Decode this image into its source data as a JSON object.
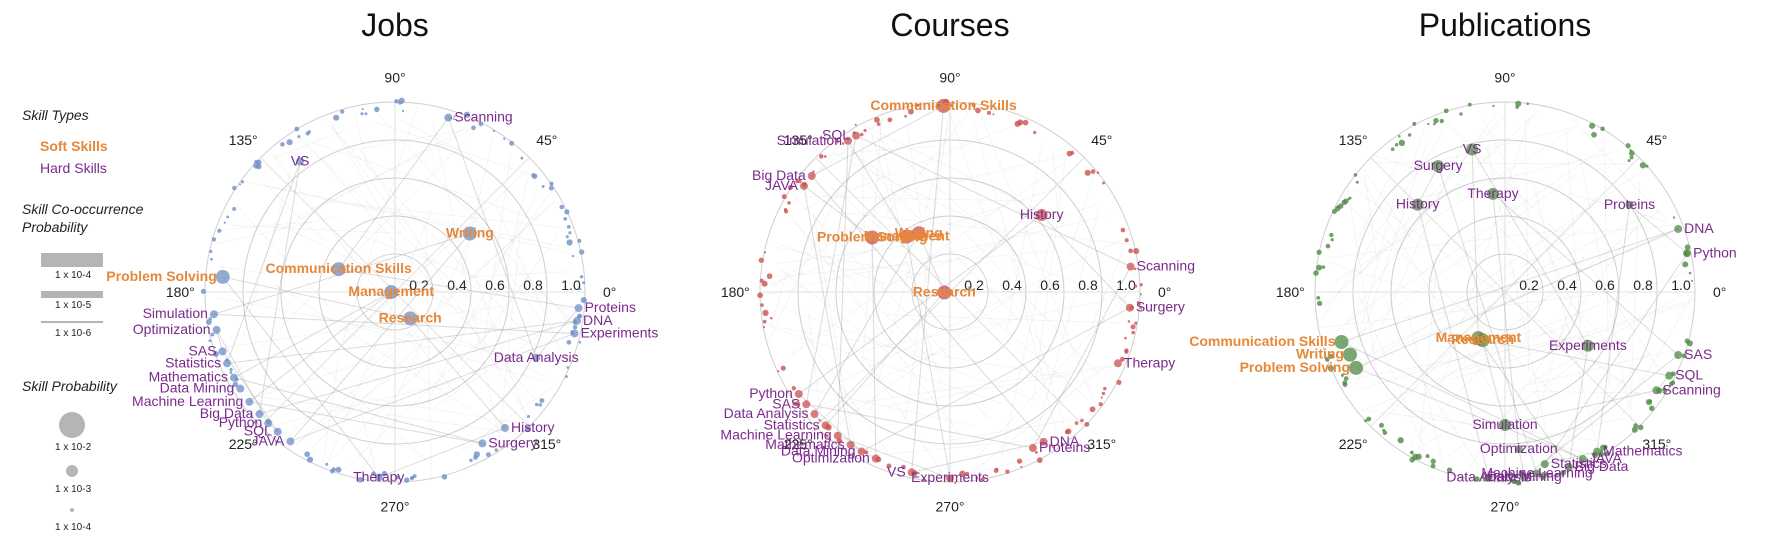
{
  "legend": {
    "skill_types_title": "Skill Types",
    "soft_label": "Soft Skills",
    "hard_label": "Hard Skills",
    "cooccurrence_title_line1": "Skill Co-occurrence",
    "cooccurrence_title_line2": "Probability",
    "cooccurrence_levels": [
      "1 x 10-4",
      "1 x 10-5",
      "1 x 10-6"
    ],
    "probability_title": "Skill Probability",
    "probability_levels": [
      "1 x 10-2",
      "1 x 10-3",
      "1 x 10-4"
    ],
    "soft_color": "#e6883a",
    "hard_color": "#7b2a8c"
  },
  "chart_data": [
    {
      "type": "scatter",
      "title": "Jobs",
      "color": "#6f8fc6",
      "angle_labels": [
        "0°",
        "45°",
        "90°",
        "135°",
        "180°",
        "225°",
        "270°",
        "315°"
      ],
      "radial_ticks": [
        "0.2",
        "0.4",
        "0.6",
        "0.8",
        "1.0"
      ],
      "skills": [
        {
          "name": "Scanning",
          "type": "hard",
          "r": 0.96,
          "theta": 73
        },
        {
          "name": "VS",
          "type": "hard",
          "r": 0.85,
          "theta": 126
        },
        {
          "name": "Writing",
          "type": "soft",
          "r": 0.5,
          "theta": 38
        },
        {
          "name": "Communication Skills",
          "type": "soft",
          "r": 0.32,
          "theta": 158
        },
        {
          "name": "Problem Solving",
          "type": "soft",
          "r": 0.91,
          "theta": 175
        },
        {
          "name": "Management",
          "type": "soft",
          "r": 0.02,
          "theta": 180
        },
        {
          "name": "Research",
          "type": "soft",
          "r": 0.16,
          "theta": 300
        },
        {
          "name": "Simulation",
          "type": "hard",
          "r": 0.96,
          "theta": 187
        },
        {
          "name": "Optimization",
          "type": "hard",
          "r": 0.96,
          "theta": 192
        },
        {
          "name": "SAS",
          "type": "hard",
          "r": 0.96,
          "theta": 199
        },
        {
          "name": "Statistics",
          "type": "hard",
          "r": 0.96,
          "theta": 203
        },
        {
          "name": "Mathematics",
          "type": "hard",
          "r": 0.96,
          "theta": 208
        },
        {
          "name": "Data Mining",
          "type": "hard",
          "r": 0.96,
          "theta": 212
        },
        {
          "name": "Machine Learning",
          "type": "hard",
          "r": 0.96,
          "theta": 217
        },
        {
          "name": "Big Data",
          "type": "hard",
          "r": 0.96,
          "theta": 222
        },
        {
          "name": "Python",
          "type": "hard",
          "r": 0.96,
          "theta": 226
        },
        {
          "name": "SQL",
          "type": "hard",
          "r": 0.96,
          "theta": 230
        },
        {
          "name": "JAVA",
          "type": "hard",
          "r": 0.96,
          "theta": 235
        },
        {
          "name": "Therapy",
          "type": "hard",
          "r": 0.98,
          "theta": 265
        },
        {
          "name": "Surgery",
          "type": "hard",
          "r": 0.92,
          "theta": 300
        },
        {
          "name": "History",
          "type": "hard",
          "r": 0.92,
          "theta": 309
        },
        {
          "name": "Data Analysis",
          "type": "hard",
          "r": 0.82,
          "theta": 335
        },
        {
          "name": "Experiments",
          "type": "hard",
          "r": 0.97,
          "theta": 347
        },
        {
          "name": "DNA",
          "type": "hard",
          "r": 0.97,
          "theta": 351
        },
        {
          "name": "Proteins",
          "type": "hard",
          "r": 0.97,
          "theta": 355
        }
      ]
    },
    {
      "type": "scatter",
      "title": "Courses",
      "color": "#c9524f",
      "angle_labels": [
        "0°",
        "45°",
        "90°",
        "135°",
        "180°",
        "225°",
        "270°",
        "315°"
      ],
      "radial_ticks": [
        "0.2",
        "0.4",
        "0.6",
        "0.8",
        "1.0"
      ],
      "skills": [
        {
          "name": "Communication Skills",
          "type": "soft",
          "r": 0.98,
          "theta": 92
        },
        {
          "name": "SQL",
          "type": "hard",
          "r": 0.96,
          "theta": 121
        },
        {
          "name": "Simulation",
          "type": "hard",
          "r": 0.96,
          "theta": 124
        },
        {
          "name": "Big Data",
          "type": "hard",
          "r": 0.95,
          "theta": 140
        },
        {
          "name": "JAVA",
          "type": "hard",
          "r": 0.95,
          "theta": 144
        },
        {
          "name": "History",
          "type": "hard",
          "r": 0.63,
          "theta": 40
        },
        {
          "name": "Problem Solving",
          "type": "soft",
          "r": 0.5,
          "theta": 145
        },
        {
          "name": "Management",
          "type": "soft",
          "r": 0.37,
          "theta": 128
        },
        {
          "name": "Writing",
          "type": "soft",
          "r": 0.35,
          "theta": 118
        },
        {
          "name": "Research",
          "type": "soft",
          "r": 0.03,
          "theta": 185
        },
        {
          "name": "Scanning",
          "type": "hard",
          "r": 0.96,
          "theta": 8
        },
        {
          "name": "Surgery",
          "type": "hard",
          "r": 0.95,
          "theta": 355
        },
        {
          "name": "Therapy",
          "type": "hard",
          "r": 0.96,
          "theta": 337
        },
        {
          "name": "Python",
          "type": "hard",
          "r": 0.96,
          "theta": 214
        },
        {
          "name": "SAS",
          "type": "hard",
          "r": 0.96,
          "theta": 218
        },
        {
          "name": "Data Analysis",
          "type": "hard",
          "r": 0.96,
          "theta": 222
        },
        {
          "name": "Statistics",
          "type": "hard",
          "r": 0.96,
          "theta": 227
        },
        {
          "name": "Machine Learning",
          "type": "hard",
          "r": 0.96,
          "theta": 232
        },
        {
          "name": "Mathematics",
          "type": "hard",
          "r": 0.96,
          "theta": 237
        },
        {
          "name": "Data Mining",
          "type": "hard",
          "r": 0.96,
          "theta": 241
        },
        {
          "name": "Optimization",
          "type": "hard",
          "r": 0.96,
          "theta": 246
        },
        {
          "name": "VS",
          "type": "hard",
          "r": 0.97,
          "theta": 258
        },
        {
          "name": "Experiments",
          "type": "hard",
          "r": 0.98,
          "theta": 270
        },
        {
          "name": "Proteins",
          "type": "hard",
          "r": 0.93,
          "theta": 298
        },
        {
          "name": "DNA",
          "type": "hard",
          "r": 0.93,
          "theta": 302
        }
      ]
    },
    {
      "type": "scatter",
      "title": "Publications",
      "color": "#4f8a44",
      "angle_labels": [
        "0°",
        "45°",
        "90°",
        "135°",
        "180°",
        "225°",
        "270°",
        "315°"
      ],
      "radial_ticks": [
        "0.2",
        "0.4",
        "0.6",
        "0.8",
        "1.0"
      ],
      "skills": [
        {
          "name": "Surgery",
          "type": "hard",
          "r": 0.75,
          "theta": 118
        },
        {
          "name": "VS",
          "type": "hard",
          "r": 0.77,
          "theta": 103
        },
        {
          "name": "Therapy",
          "type": "hard",
          "r": 0.52,
          "theta": 97
        },
        {
          "name": "History",
          "type": "hard",
          "r": 0.65,
          "theta": 135
        },
        {
          "name": "Proteins",
          "type": "hard",
          "r": 0.8,
          "theta": 35
        },
        {
          "name": "DNA",
          "type": "hard",
          "r": 0.97,
          "theta": 20
        },
        {
          "name": "Python",
          "type": "hard",
          "r": 0.98,
          "theta": 12
        },
        {
          "name": "SAS",
          "type": "hard",
          "r": 0.97,
          "theta": 340
        },
        {
          "name": "SQL",
          "type": "hard",
          "r": 0.97,
          "theta": 333
        },
        {
          "name": "Scanning",
          "type": "hard",
          "r": 0.95,
          "theta": 327
        },
        {
          "name": "Experiments",
          "type": "hard",
          "r": 0.52,
          "theta": 327
        },
        {
          "name": "Communication Skills",
          "type": "soft",
          "r": 0.9,
          "theta": 197
        },
        {
          "name": "Writing",
          "type": "soft",
          "r": 0.88,
          "theta": 202
        },
        {
          "name": "Problem Solving",
          "type": "soft",
          "r": 0.88,
          "theta": 207
        },
        {
          "name": "Management",
          "type": "soft",
          "r": 0.28,
          "theta": 240
        },
        {
          "name": "Research",
          "type": "soft",
          "r": 0.28,
          "theta": 245
        },
        {
          "name": "Simulation",
          "type": "hard",
          "r": 0.7,
          "theta": 270
        },
        {
          "name": "Optimization",
          "type": "hard",
          "r": 0.83,
          "theta": 275
        },
        {
          "name": "Mathematics",
          "type": "hard",
          "r": 0.97,
          "theta": 300
        },
        {
          "name": "JAVA",
          "type": "hard",
          "r": 0.97,
          "theta": 295
        },
        {
          "name": "Statistics",
          "type": "hard",
          "r": 0.93,
          "theta": 283
        },
        {
          "name": "Machine Learning",
          "type": "hard",
          "r": 0.97,
          "theta": 280
        },
        {
          "name": "Data Mining",
          "type": "hard",
          "r": 0.98,
          "theta": 276
        },
        {
          "name": "Big Data",
          "type": "hard",
          "r": 0.98,
          "theta": 290
        },
        {
          "name": "Data Analysis",
          "type": "hard",
          "r": 0.98,
          "theta": 265
        }
      ]
    }
  ]
}
